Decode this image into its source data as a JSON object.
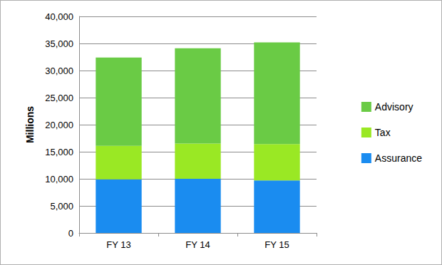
{
  "chart_data": {
    "type": "bar",
    "stacked": true,
    "y_label": "Millions",
    "categories": [
      "FY 13",
      "FY 14",
      "FY 15"
    ],
    "series": [
      {
        "name": "Assurance",
        "color": "#1a8cf0",
        "values": [
          9900,
          10000,
          9700
        ]
      },
      {
        "name": "Tax",
        "color": "#9ae824",
        "values": [
          6200,
          6500,
          6700
        ]
      },
      {
        "name": "Advisory",
        "color": "#6acb45",
        "values": [
          16300,
          17600,
          18800
        ]
      }
    ],
    "ylim": [
      0,
      40000
    ],
    "yticks": [
      0,
      {
        "value": 5000,
        "label": "5,000"
      },
      {
        "value": 10000,
        "label": "10,000"
      },
      {
        "value": 15000,
        "label": "15,000"
      },
      {
        "value": 20000,
        "label": "20,000"
      },
      {
        "value": 25000,
        "label": "25,000"
      },
      {
        "value": 30000,
        "label": "30,000"
      },
      {
        "value": 35000,
        "label": "35,000"
      },
      {
        "value": 40000,
        "label": "40,000"
      }
    ],
    "grid": true,
    "legend": "right"
  }
}
